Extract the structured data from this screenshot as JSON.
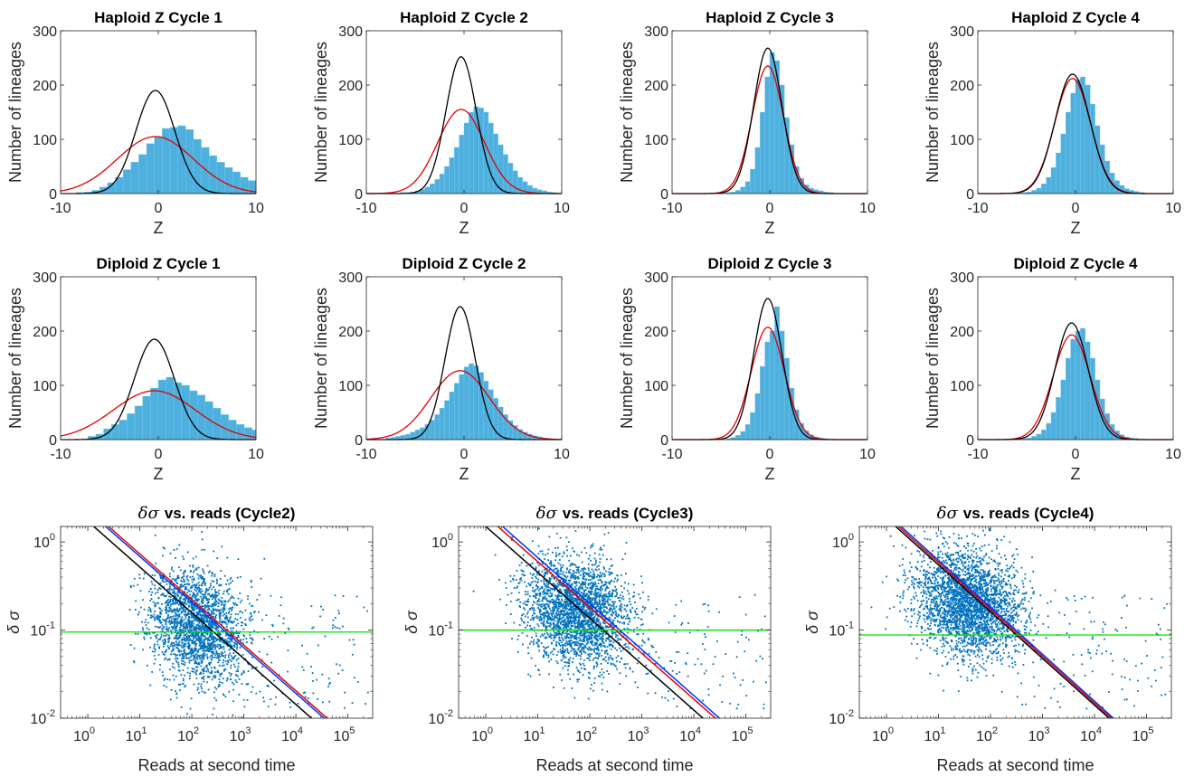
{
  "figure": {
    "background": "#ffffff",
    "colors": {
      "bars": "#4DB0DE",
      "bar_edge": "#7FC6E8",
      "red_fit": "#E00000",
      "black_fit": "#000000",
      "scatter": "#0072BD",
      "green_line": "#00E000",
      "blue_line": "#0033FF",
      "axis": "#262626"
    }
  },
  "chart_data": [
    {
      "type": "bar",
      "panel": "hist",
      "title": "Haploid Z Cycle 1",
      "xlabel": "Z",
      "ylabel": "Number of lineages",
      "xlim": [
        -10,
        10
      ],
      "ylim": [
        0,
        300
      ],
      "xticks": [
        -10,
        0,
        10
      ],
      "yticks": [
        0,
        100,
        200,
        300
      ],
      "bin_width": 0.8,
      "bins_start": -8.4,
      "counts": [
        2,
        3,
        6,
        12,
        20,
        30,
        44,
        58,
        72,
        92,
        105,
        120,
        122,
        125,
        118,
        100,
        85,
        70,
        58,
        48,
        40,
        30,
        24,
        18,
        12,
        10,
        8,
        6
      ],
      "red_fit": {
        "mu": -0.3,
        "sigma": 3.9,
        "peak": 105
      },
      "black_fit": {
        "mu": -0.3,
        "sigma": 2.0,
        "peak": 190
      }
    },
    {
      "type": "bar",
      "panel": "hist",
      "title": "Haploid Z Cycle 2",
      "xlabel": "Z",
      "ylabel": "Number of lineages",
      "xlim": [
        -10,
        10
      ],
      "ylim": [
        0,
        300
      ],
      "xticks": [
        -10,
        0,
        10
      ],
      "yticks": [
        0,
        100,
        200,
        300
      ],
      "bin_width": 0.5,
      "bins_start": -7.5,
      "counts": [
        1,
        1,
        2,
        2,
        3,
        5,
        8,
        12,
        18,
        26,
        36,
        50,
        66,
        85,
        108,
        130,
        150,
        160,
        158,
        150,
        130,
        110,
        90,
        72,
        56,
        42,
        30,
        22,
        15,
        10,
        7,
        5,
        3,
        2,
        1
      ],
      "red_fit": {
        "mu": -0.3,
        "sigma": 2.4,
        "peak": 155
      },
      "black_fit": {
        "mu": -0.3,
        "sigma": 1.55,
        "peak": 252
      }
    },
    {
      "type": "bar",
      "panel": "hist",
      "title": "Haploid Z Cycle 3",
      "xlabel": "Z",
      "ylabel": "Number of lineages",
      "xlim": [
        -10,
        10
      ],
      "ylim": [
        0,
        300
      ],
      "xticks": [
        -10,
        0,
        10
      ],
      "yticks": [
        0,
        100,
        200,
        300
      ],
      "bin_width": 0.5,
      "bins_start": -4.5,
      "counts": [
        2,
        3,
        6,
        12,
        22,
        45,
        85,
        150,
        215,
        260,
        245,
        200,
        140,
        90,
        50,
        28,
        16,
        10,
        7,
        5,
        3,
        2
      ],
      "red_fit": {
        "mu": -0.2,
        "sigma": 1.6,
        "peak": 235
      },
      "black_fit": {
        "mu": -0.2,
        "sigma": 1.45,
        "peak": 268
      }
    },
    {
      "type": "bar",
      "panel": "hist",
      "title": "Haploid Z Cycle 4",
      "xlabel": "Z",
      "ylabel": "Number of lineages",
      "xlim": [
        -10,
        10
      ],
      "ylim": [
        0,
        300
      ],
      "xticks": [
        -10,
        0,
        10
      ],
      "yticks": [
        0,
        100,
        200,
        300
      ],
      "bin_width": 0.5,
      "bins_start": -6.0,
      "counts": [
        1,
        2,
        3,
        6,
        10,
        18,
        30,
        48,
        75,
        110,
        150,
        185,
        210,
        215,
        200,
        165,
        125,
        90,
        60,
        38,
        24,
        15,
        9,
        6,
        4,
        2
      ],
      "red_fit": {
        "mu": -0.3,
        "sigma": 1.85,
        "peak": 212
      },
      "black_fit": {
        "mu": -0.3,
        "sigma": 1.8,
        "peak": 220
      }
    },
    {
      "type": "bar",
      "panel": "hist",
      "title": "Diploid Z Cycle 1",
      "xlabel": "Z",
      "ylabel": "Number of lineages",
      "xlim": [
        -10,
        10
      ],
      "ylim": [
        0,
        300
      ],
      "xticks": [
        -10,
        0,
        10
      ],
      "yticks": [
        0,
        100,
        200,
        300
      ],
      "bin_width": 0.8,
      "bins_start": -7.2,
      "counts": [
        6,
        10,
        20,
        28,
        36,
        48,
        62,
        80,
        95,
        110,
        115,
        105,
        100,
        90,
        82,
        70,
        58,
        46,
        36,
        28,
        22,
        18,
        15,
        12,
        10,
        8,
        6
      ],
      "red_fit": {
        "mu": -0.4,
        "sigma": 4.2,
        "peak": 90
      },
      "black_fit": {
        "mu": -0.4,
        "sigma": 2.05,
        "peak": 185
      }
    },
    {
      "type": "bar",
      "panel": "hist",
      "title": "Diploid Z Cycle 2",
      "xlabel": "Z",
      "ylabel": "Number of lineages",
      "xlim": [
        -10,
        10
      ],
      "ylim": [
        0,
        300
      ],
      "xticks": [
        -10,
        0,
        10
      ],
      "yticks": [
        0,
        100,
        200,
        300
      ],
      "bin_width": 0.5,
      "bins_start": -8.0,
      "counts": [
        3,
        4,
        6,
        8,
        10,
        14,
        18,
        22,
        28,
        36,
        46,
        58,
        72,
        88,
        104,
        120,
        134,
        140,
        136,
        124,
        108,
        92,
        76,
        60,
        46,
        35,
        26,
        19,
        14,
        10,
        7,
        5,
        3,
        2,
        1
      ],
      "red_fit": {
        "mu": -0.4,
        "sigma": 3.0,
        "peak": 127
      },
      "black_fit": {
        "mu": -0.4,
        "sigma": 1.55,
        "peak": 245
      }
    },
    {
      "type": "bar",
      "panel": "hist",
      "title": "Diploid Z Cycle 3",
      "xlabel": "Z",
      "ylabel": "Number of lineages",
      "xlim": [
        -10,
        10
      ],
      "ylim": [
        0,
        300
      ],
      "xticks": [
        -10,
        0,
        10
      ],
      "yticks": [
        0,
        100,
        200,
        300
      ],
      "bin_width": 0.5,
      "bins_start": -4.5,
      "counts": [
        2,
        4,
        8,
        15,
        28,
        50,
        85,
        135,
        180,
        200,
        245,
        200,
        150,
        95,
        55,
        30,
        16,
        9,
        5,
        3,
        2
      ],
      "red_fit": {
        "mu": -0.2,
        "sigma": 1.7,
        "peak": 207
      },
      "black_fit": {
        "mu": -0.2,
        "sigma": 1.45,
        "peak": 260
      }
    },
    {
      "type": "bar",
      "panel": "hist",
      "title": "Diploid Z Cycle 4",
      "xlabel": "Z",
      "ylabel": "Number of lineages",
      "xlim": [
        -10,
        10
      ],
      "ylim": [
        0,
        300
      ],
      "xticks": [
        -10,
        0,
        10
      ],
      "yticks": [
        0,
        100,
        200,
        300
      ],
      "bin_width": 0.5,
      "bins_start": -5.5,
      "counts": [
        2,
        3,
        6,
        10,
        18,
        30,
        50,
        78,
        110,
        150,
        185,
        200,
        205,
        180,
        150,
        110,
        75,
        48,
        28,
        16,
        9,
        5,
        3,
        2
      ],
      "red_fit": {
        "mu": -0.4,
        "sigma": 1.9,
        "peak": 193
      },
      "black_fit": {
        "mu": -0.4,
        "sigma": 1.7,
        "peak": 215
      }
    },
    {
      "type": "scatter",
      "panel": "scatter",
      "title": "δσ vs. reads (Cycle2)",
      "title_math": "δσ",
      "title_rest": "vs. reads (Cycle2)",
      "xlabel": "Reads at second time",
      "ylabel": "δ σ",
      "xscale": "log",
      "yscale": "log",
      "xlim": [
        0.3,
        300000
      ],
      "ylim": [
        0.01,
        1.5
      ],
      "xticks": [
        1,
        10,
        100,
        1000,
        10000,
        100000
      ],
      "xticklabels": [
        [
          "10",
          "0"
        ],
        [
          "10",
          "1"
        ],
        [
          "10",
          "2"
        ],
        [
          "10",
          "3"
        ],
        [
          "10",
          "4"
        ],
        [
          "10",
          "5"
        ]
      ],
      "yticks": [
        0.01,
        0.1,
        1
      ],
      "yticklabels": [
        [
          "10",
          "-2"
        ],
        [
          "10",
          "-1"
        ],
        [
          "10",
          "0"
        ]
      ],
      "cloud": {
        "center_log10_x": 2.1,
        "center_log10_y": -0.95,
        "spread_x": 0.45,
        "spread_y": 0.32,
        "n": 2200,
        "seed": 11
      },
      "green_line_y": 0.095,
      "fit_lines": [
        {
          "name": "black",
          "color": "black",
          "x1": 1.3,
          "y1": 1.5,
          "x2": 20000,
          "y2": 0.01
        },
        {
          "name": "red",
          "color": "red",
          "x1": 2.5,
          "y1": 1.5,
          "x2": 40000,
          "y2": 0.01
        },
        {
          "name": "blue",
          "color": "blue",
          "x1": 2.2,
          "y1": 1.5,
          "x2": 35000,
          "y2": 0.01
        }
      ]
    },
    {
      "type": "scatter",
      "panel": "scatter",
      "title": "δσ vs. reads (Cycle3)",
      "title_math": "δσ",
      "title_rest": "vs. reads (Cycle3)",
      "xlabel": "Reads at second time",
      "ylabel": "δ σ",
      "xscale": "log",
      "yscale": "log",
      "xlim": [
        0.3,
        300000
      ],
      "ylim": [
        0.01,
        1.5
      ],
      "xticks": [
        1,
        10,
        100,
        1000,
        10000,
        100000
      ],
      "xticklabels": [
        [
          "10",
          "0"
        ],
        [
          "10",
          "1"
        ],
        [
          "10",
          "2"
        ],
        [
          "10",
          "3"
        ],
        [
          "10",
          "4"
        ],
        [
          "10",
          "5"
        ]
      ],
      "yticks": [
        0.01,
        0.1,
        1
      ],
      "yticklabels": [
        [
          "10",
          "-2"
        ],
        [
          "10",
          "-1"
        ],
        [
          "10",
          "0"
        ]
      ],
      "cloud": {
        "center_log10_x": 1.75,
        "center_log10_y": -0.8,
        "spread_x": 0.5,
        "spread_y": 0.3,
        "n": 2600,
        "seed": 23
      },
      "green_line_y": 0.1,
      "fit_lines": [
        {
          "name": "black",
          "color": "black",
          "x1": 1.0,
          "y1": 1.5,
          "x2": 15000,
          "y2": 0.01
        },
        {
          "name": "red",
          "color": "red",
          "x1": 1.7,
          "y1": 1.5,
          "x2": 26000,
          "y2": 0.01
        },
        {
          "name": "blue",
          "color": "blue",
          "x1": 2.1,
          "y1": 1.5,
          "x2": 31000,
          "y2": 0.01
        }
      ]
    },
    {
      "type": "scatter",
      "panel": "scatter",
      "title": "δσ vs. reads (Cycle4)",
      "title_math": "δσ",
      "title_rest": "vs. reads (Cycle4)",
      "xlabel": "Reads at second time",
      "ylabel": "δ σ",
      "xscale": "log",
      "yscale": "log",
      "xlim": [
        0.3,
        300000
      ],
      "ylim": [
        0.01,
        1.5
      ],
      "xticks": [
        1,
        10,
        100,
        1000,
        10000,
        100000
      ],
      "xticklabels": [
        [
          "10",
          "0"
        ],
        [
          "10",
          "1"
        ],
        [
          "10",
          "2"
        ],
        [
          "10",
          "3"
        ],
        [
          "10",
          "4"
        ],
        [
          "10",
          "5"
        ]
      ],
      "yticks": [
        0.01,
        0.1,
        1
      ],
      "yticklabels": [
        [
          "10",
          "-2"
        ],
        [
          "10",
          "-1"
        ],
        [
          "10",
          "0"
        ]
      ],
      "cloud": {
        "center_log10_x": 1.55,
        "center_log10_y": -0.7,
        "spread_x": 0.5,
        "spread_y": 0.3,
        "n": 2800,
        "seed": 37
      },
      "green_line_y": 0.088,
      "fit_lines": [
        {
          "name": "black",
          "color": "black",
          "x1": 1.5,
          "y1": 1.5,
          "x2": 19000,
          "y2": 0.01
        },
        {
          "name": "red",
          "color": "red",
          "x1": 1.7,
          "y1": 1.5,
          "x2": 21000,
          "y2": 0.01
        },
        {
          "name": "blue",
          "color": "blue",
          "x1": 1.9,
          "y1": 1.5,
          "x2": 23000,
          "y2": 0.01
        }
      ]
    }
  ]
}
